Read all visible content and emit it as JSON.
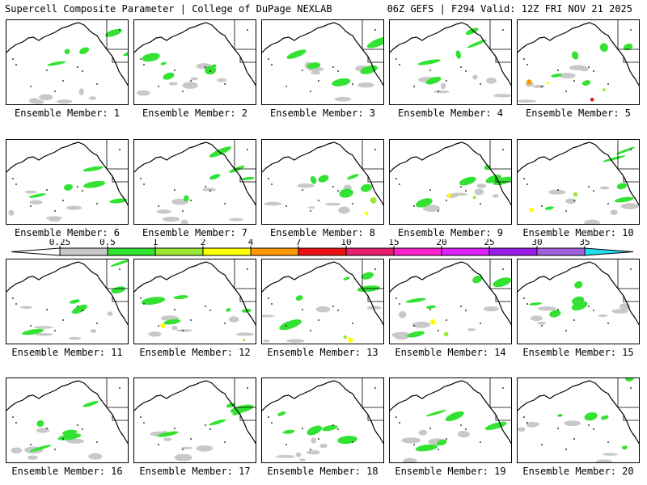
{
  "header": {
    "left": "Supercell Composite Parameter | College of DuPage NEXLAB",
    "right": "06Z GEFS | F294 Valid: 12Z FRI NOV 21 2025"
  },
  "colors": {
    "ticks": [
      "0.25",
      "0.5",
      "1",
      "2",
      "4",
      "7",
      "10",
      "15",
      "20",
      "25",
      "30",
      "35"
    ],
    "swatches": [
      "#c8c8c8",
      "#33e233",
      "#99e633",
      "#ffff00",
      "#ff9900",
      "#ee1111",
      "#e81e6e",
      "#ff22cc",
      "#dd22ff",
      "#9a1ee8",
      "#a060e0"
    ],
    "above": "#22ddee",
    "none": "#ffffff"
  },
  "panels": [
    {
      "label": "Ensemble Member: 1",
      "level": 2
    },
    {
      "label": "Ensemble Member: 2",
      "level": 2
    },
    {
      "label": "Ensemble Member: 3",
      "level": 2
    },
    {
      "label": "Ensemble Member: 4",
      "level": 2
    },
    {
      "label": "Ensemble Member: 5",
      "level": 6
    },
    {
      "label": "Ensemble Member: 6",
      "level": 2
    },
    {
      "label": "Ensemble Member: 7",
      "level": 2
    },
    {
      "label": "Ensemble Member: 8",
      "level": 4
    },
    {
      "label": "Ensemble Member: 9",
      "level": 4
    },
    {
      "label": "Ensemble Member: 10",
      "level": 4
    },
    {
      "label": "Ensemble Member: 11",
      "level": 2
    },
    {
      "label": "Ensemble Member: 12",
      "level": 4
    },
    {
      "label": "Ensemble Member: 13",
      "level": 4
    },
    {
      "label": "Ensemble Member: 14",
      "level": 4
    },
    {
      "label": "Ensemble Member: 15",
      "level": 2
    },
    {
      "label": "Ensemble Member: 16",
      "level": 2
    },
    {
      "label": "Ensemble Member: 17",
      "level": 2
    },
    {
      "label": "Ensemble Member: 18",
      "level": 2
    },
    {
      "label": "Ensemble Member: 19",
      "level": 2
    },
    {
      "label": "Ensemble Member: 20",
      "level": 2
    }
  ]
}
